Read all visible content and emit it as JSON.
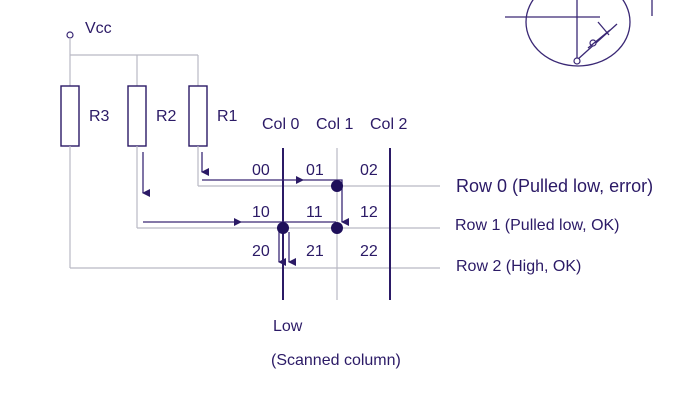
{
  "supply": {
    "label": "Vcc"
  },
  "resistors": [
    "R3",
    "R2",
    "R1"
  ],
  "columns": [
    "Col 0",
    "Col 1",
    "Col 2"
  ],
  "keys": [
    [
      "00",
      "01",
      "02"
    ],
    [
      "10",
      "11",
      "12"
    ],
    [
      "20",
      "21",
      "22"
    ]
  ],
  "rows": [
    "Row 0 (Pulled low, error)",
    "Row 1 (Pulled low, OK)",
    "Row 2 (High, OK)"
  ],
  "scan": {
    "level": "Low",
    "note": "(Scanned column)"
  },
  "colors": {
    "ink": "#2b1a66",
    "wire": "#b9b9c4"
  }
}
